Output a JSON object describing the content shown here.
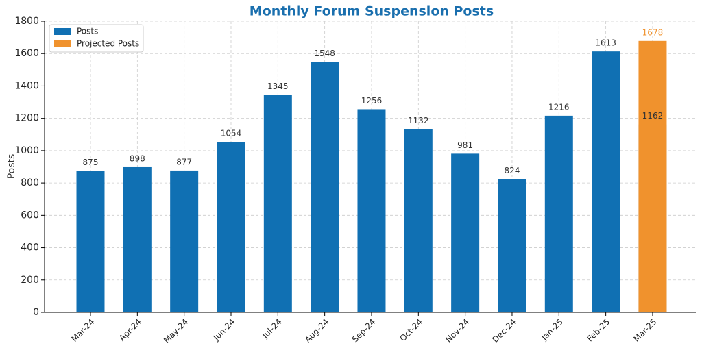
{
  "chart_data": {
    "type": "bar",
    "title": "Monthly Forum Suspension Posts",
    "ylabel": "Posts",
    "categories": [
      "Mar-24",
      "Apr-24",
      "May-24",
      "Jun-24",
      "Jul-24",
      "Aug-24",
      "Sep-24",
      "Oct-24",
      "Nov-24",
      "Dec-24",
      "Jan-25",
      "Feb-25",
      "Mar-25"
    ],
    "series": [
      {
        "name": "Posts",
        "color": "#1070b3",
        "values": [
          875,
          898,
          877,
          1054,
          1345,
          1548,
          1256,
          1132,
          981,
          824,
          1216,
          1613,
          1162
        ]
      },
      {
        "name": "Projected Posts",
        "color": "#f0922d",
        "values": [
          null,
          null,
          null,
          null,
          null,
          null,
          null,
          null,
          null,
          null,
          null,
          null,
          1678
        ]
      }
    ],
    "ylim": [
      0,
      1800
    ],
    "yticks": [
      0,
      200,
      400,
      600,
      800,
      1000,
      1200,
      1400,
      1600,
      1800
    ],
    "grid": true,
    "legend": "upper left"
  }
}
